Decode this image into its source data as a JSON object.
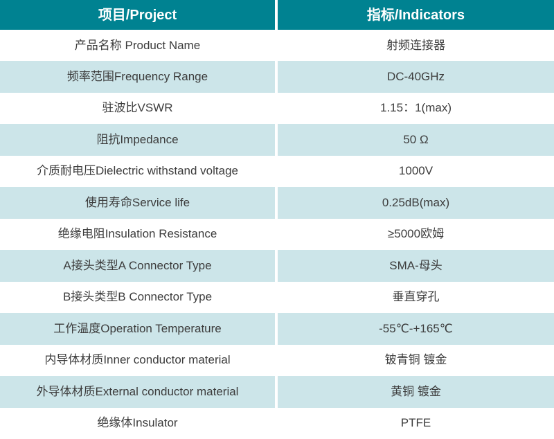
{
  "table": {
    "columns": [
      {
        "label": "项目/Project"
      },
      {
        "label": "指标/Indicators"
      }
    ],
    "rows": [
      {
        "project": "产品名称 Product Name",
        "indicator": "射频连接器"
      },
      {
        "project": "频率范围Frequency Range",
        "indicator": "DC-40GHz"
      },
      {
        "project": "驻波比VSWR",
        "indicator": "1.15：1(max)"
      },
      {
        "project": "阻抗Impedance",
        "indicator": "50 Ω"
      },
      {
        "project": "介质耐电压Dielectric withstand voltage",
        "indicator": "1000V"
      },
      {
        "project": "使用寿命Service life",
        "indicator": "0.25dB(max)"
      },
      {
        "project": "绝缘电阻Insulation Resistance",
        "indicator": "≥5000欧姆"
      },
      {
        "project": "A接头类型A Connector Type",
        "indicator": "SMA-母头"
      },
      {
        "project": "B接头类型B Connector Type",
        "indicator": "垂直穿孔"
      },
      {
        "project": "工作温度Operation Temperature",
        "indicator": "-55℃-+165℃"
      },
      {
        "project": "内导体材质Inner conductor material",
        "indicator": "铍青铜 镀金"
      },
      {
        "project": "外导体材质External conductor material",
        "indicator": "黄铜 镀金"
      },
      {
        "project": "绝缘体Insulator",
        "indicator": "PTFE"
      }
    ],
    "colors": {
      "header_bg": "#008291",
      "header_text": "#ffffff",
      "tint_row_bg": "#cce5e9",
      "white_row_bg": "#ffffff",
      "body_text": "#3c3c3c",
      "divider": "#ffffff"
    }
  }
}
